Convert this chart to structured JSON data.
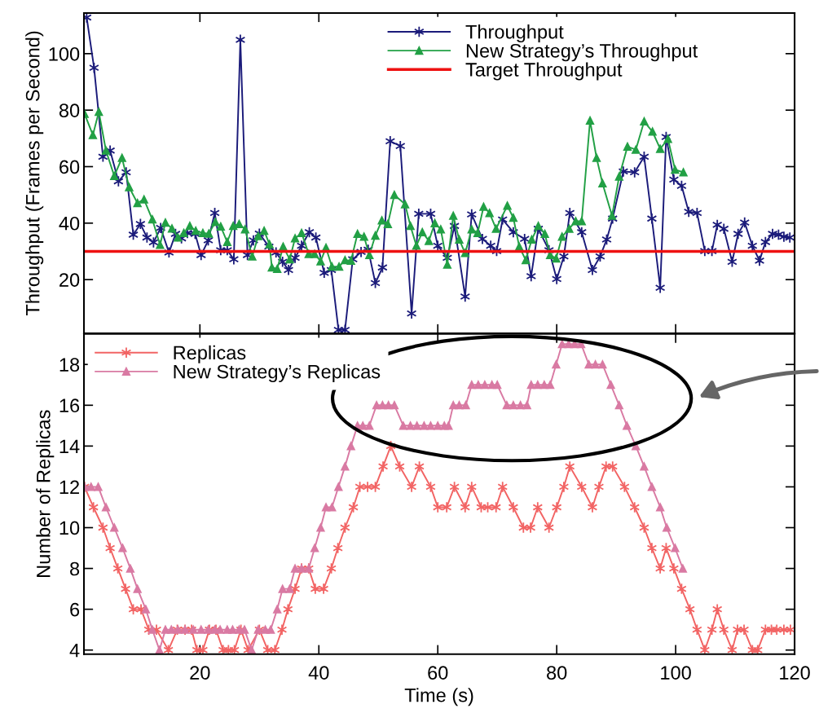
{
  "chart_data": [
    {
      "type": "line",
      "ylabel": "Throughput (Frames per Second)",
      "xlim": [
        0.5,
        120
      ],
      "xticks": [
        20,
        40,
        60,
        80,
        100,
        120
      ],
      "ylim": [
        1,
        114.4
      ],
      "yticks": [
        20,
        40,
        60,
        80,
        100
      ],
      "tick_labels": "y",
      "grid": false,
      "legend": "top right",
      "series": [
        {
          "name": "Throughput",
          "color": "#1b1b7a",
          "marker": "cross",
          "x": [
            0.96,
            2.2,
            3.7,
            4.9,
            6.3,
            7.6,
            8.8,
            10.0,
            11.1,
            12.2,
            13.4,
            14.8,
            15.9,
            16.9,
            17.9,
            19.2,
            20.2,
            21.4,
            22.5,
            23.5,
            24.6,
            25.7,
            26.8,
            28.0,
            29.0,
            30.0,
            31.6,
            32.8,
            33.9,
            34.9,
            36.0,
            37.1,
            38.4,
            39.5,
            40.9,
            42.1,
            43.3,
            44.4,
            45.7,
            47.1,
            48.3,
            49.5,
            50.7,
            52.0,
            53.7,
            55.6,
            56.8,
            58.8,
            60.0,
            61.6,
            62.8,
            64.6,
            65.7,
            67.5,
            68.9,
            69.9,
            70.9,
            72.7,
            74.6,
            75.7,
            76.9,
            78.7,
            80.0,
            81.2,
            82.2,
            84.2,
            86.0,
            87.3,
            88.4,
            89.4,
            91.2,
            93.1,
            94.7,
            96.0,
            97.4,
            98.4,
            99.7,
            101.0,
            102.2,
            103.6,
            104.9,
            106.1,
            107.0,
            108.1,
            109.5,
            110.5,
            111.6,
            112.9,
            114.1,
            115.1,
            116.3,
            117.3,
            118.2,
            119.2
          ],
          "values": [
            112.8,
            95,
            63.5,
            65.7,
            54.8,
            58,
            35.9,
            39.7,
            34.9,
            33.2,
            38.3,
            29.6,
            36.2,
            34.6,
            36.5,
            36.2,
            28.7,
            33.9,
            43.6,
            30.4,
            30.4,
            27.2,
            104.9,
            28.7,
            33.9,
            36.3,
            31.7,
            29.6,
            26.3,
            23.4,
            27.7,
            32,
            36.8,
            34.9,
            22.4,
            23.4,
            2.2,
            2.2,
            27.2,
            29.8,
            30.6,
            18.8,
            24.3,
            69,
            67.3,
            8,
            43.3,
            43.3,
            32,
            27.7,
            39,
            14,
            43.1,
            34.4,
            32,
            30.1,
            41.3,
            36.8,
            34.4,
            21.2,
            38,
            30.4,
            20.2,
            28.2,
            43.6,
            36.8,
            23.4,
            28.2,
            34.2,
            41.6,
            58.3,
            58,
            63.5,
            41.6,
            17.1,
            70.5,
            55.4,
            53.2,
            44,
            43.6,
            30.1,
            30.1,
            39.4,
            38,
            26.3,
            36.2,
            40.2,
            32,
            26.7,
            33.3,
            36.2,
            35.9,
            35.2,
            34.9
          ]
        },
        {
          "name": "New Strategy’s Throughput",
          "color": "#22a045",
          "marker": "triangle",
          "x": [
            0.6,
            2.0,
            3.0,
            4.2,
            5.6,
            6.9,
            8.1,
            9.5,
            10.6,
            12.0,
            13.3,
            14.2,
            15.3,
            16.3,
            17.3,
            18.3,
            19.3,
            20.5,
            21.5,
            22.6,
            23.5,
            24.6,
            25.6,
            26.6,
            27.6,
            28.8,
            29.8,
            30.8,
            31.7,
            32.1,
            33.0,
            34.0,
            35.1,
            36.0,
            37.1,
            38.3,
            39.3,
            40.3,
            41.2,
            42.2,
            43.4,
            44.4,
            45.4,
            46.5,
            47.6,
            48.5,
            49.5,
            50.6,
            51.6,
            52.7,
            54.5,
            55.4,
            56.4,
            57.4,
            58.5,
            59.5,
            60.5,
            61.6,
            62.6,
            63.6,
            64.6,
            65.7,
            66.7,
            67.7,
            68.7,
            69.8,
            71.7,
            72.7,
            73.7,
            74.8,
            75.8,
            76.9,
            78.0,
            78.9,
            79.9,
            80.9,
            82.1,
            83.2,
            84.2,
            85.6,
            86.7,
            87.7,
            89.3,
            90.5,
            91.9,
            93.3,
            94.7,
            96.1,
            97.4,
            98.7,
            99.9,
            101.3
          ],
          "values": [
            78.7,
            71.2,
            79.4,
            65.7,
            56.7,
            63.1,
            52.7,
            47.1,
            48.4,
            41.3,
            32.3,
            40.2,
            38.1,
            34.9,
            36.5,
            39,
            37.3,
            36.5,
            36.3,
            40.4,
            38.8,
            33.3,
            39,
            39.7,
            37.8,
            28.2,
            35.4,
            37.3,
            32.5,
            24.3,
            23.8,
            31.7,
            27.2,
            34.6,
            36.5,
            29.1,
            29.1,
            26.5,
            31.3,
            24.6,
            24.6,
            26.9,
            26.7,
            36.2,
            35.2,
            28.7,
            35.6,
            41,
            39.7,
            50,
            46.7,
            39,
            32,
            36.8,
            33.7,
            40,
            37.8,
            25.3,
            42.6,
            34.2,
            29.4,
            37.8,
            36.5,
            45.8,
            43.6,
            38,
            46.2,
            41.9,
            31.7,
            26.9,
            34.2,
            39,
            36.2,
            28.7,
            27.5,
            35.2,
            38,
            40.7,
            40.7,
            76.3,
            63.1,
            54.1,
            42.6,
            56.5,
            67.1,
            66,
            76,
            72.4,
            66.3,
            69.8,
            58.9,
            58
          ]
        }
      ],
      "ref_lines": [
        {
          "axis": "y",
          "value": 30,
          "label": "Target Throughput",
          "color": "#ee1111",
          "line_style": "solid"
        }
      ]
    },
    {
      "type": "line",
      "xlabel": "Time (s)",
      "ylabel": "Number of Replicas",
      "xlim": [
        0.5,
        120
      ],
      "xticks": [
        20,
        40,
        60,
        80,
        100,
        120
      ],
      "ylim": [
        3.8,
        19.5
      ],
      "yticks": [
        4,
        6,
        8,
        10,
        12,
        14,
        16,
        18
      ],
      "grid": false,
      "legend": "top left",
      "series": [
        {
          "name": "Replicas",
          "color": "#f26464",
          "marker": "cross",
          "x": [
            0.6,
            2.1,
            3.7,
            4.9,
            6.2,
            7.5,
            8.8,
            10.1,
            11.4,
            12.7,
            14.7,
            16.2,
            17.5,
            18.6,
            19.5,
            20.5,
            21.6,
            22.7,
            23.9,
            24.8,
            25.8,
            26.9,
            28.1,
            30.0,
            31.4,
            32.6,
            33.8,
            34.8,
            36.0,
            37.1,
            38.3,
            39.4,
            40.8,
            42.1,
            43.2,
            44.4,
            45.8,
            46.9,
            48.2,
            49.5,
            50.8,
            52.1,
            53.6,
            55.6,
            56.9,
            58.8,
            60.0,
            61.5,
            62.8,
            64.6,
            65.7,
            67.3,
            68.4,
            69.8,
            70.9,
            72.7,
            74.4,
            75.6,
            76.8,
            78.7,
            80.0,
            81.2,
            82.2,
            84.2,
            86.0,
            87.1,
            88.3,
            89.4,
            91.4,
            93.1,
            94.7,
            96.0,
            97.4,
            98.4,
            99.7,
            101.0,
            102.4,
            103.6,
            104.9,
            106.1,
            107.0,
            108.1,
            109.5,
            110.4,
            111.5,
            112.9,
            113.8,
            115.1,
            116.1,
            117.0,
            118.2,
            119.3
          ],
          "values": [
            12,
            11,
            10,
            9,
            8,
            7,
            6,
            6,
            5,
            5,
            4,
            5,
            5,
            5,
            4,
            4,
            5,
            5,
            4,
            4,
            4,
            5,
            4,
            5,
            4,
            4,
            5,
            6,
            7,
            8,
            8,
            7,
            7,
            8,
            9,
            10,
            11,
            12,
            12,
            12,
            13,
            14,
            13,
            12,
            13,
            12,
            11,
            11,
            12,
            11,
            12,
            11,
            11,
            11,
            12,
            11,
            10,
            10,
            11,
            10,
            11,
            12,
            13,
            12,
            11,
            12,
            13,
            13,
            12,
            11,
            10,
            9,
            8,
            9,
            8,
            7,
            6,
            5,
            4,
            5,
            6,
            5,
            4,
            5,
            5,
            4,
            4,
            5,
            5,
            5,
            5,
            5
          ]
        },
        {
          "name": "New Strategy’s Replicas",
          "color": "#d97aa3",
          "marker": "triangle",
          "x": [
            0.6,
            1.7,
            2.9,
            4.2,
            5.6,
            7.0,
            8.3,
            9.5,
            10.9,
            12.0,
            13.2,
            14.2,
            15.2,
            16.3,
            17.5,
            18.9,
            20.2,
            21.4,
            22.5,
            23.4,
            24.6,
            25.5,
            26.6,
            27.5,
            28.7,
            29.8,
            31.0,
            31.9,
            33.0,
            33.9,
            35.1,
            36.0,
            37.1,
            38.3,
            39.3,
            40.3,
            41.2,
            42.2,
            43.3,
            44.4,
            45.4,
            46.5,
            47.4,
            48.5,
            49.7,
            50.7,
            51.7,
            52.7,
            54.2,
            55.4,
            56.5,
            57.7,
            58.8,
            60.0,
            61.1,
            61.8,
            62.6,
            63.6,
            64.7,
            65.7,
            66.8,
            67.9,
            69.1,
            70.0,
            71.6,
            72.7,
            73.9,
            75.0,
            75.7,
            76.8,
            77.9,
            78.9,
            79.9,
            80.9,
            82.0,
            83.0,
            84.1,
            85.4,
            86.5,
            87.7,
            89.1,
            90.5,
            91.8,
            93.3,
            94.7,
            96.0,
            97.4,
            98.5,
            99.9,
            101.2
          ],
          "values": [
            12,
            12,
            12,
            11,
            10,
            9,
            8,
            7,
            6,
            5,
            4,
            5,
            5,
            5,
            5,
            5,
            5,
            5,
            5,
            5,
            5,
            5,
            5,
            5,
            4,
            5,
            5,
            5,
            6,
            7,
            7,
            8,
            8,
            8,
            9,
            10,
            11,
            11,
            12,
            13,
            14,
            15,
            15,
            15,
            16,
            16,
            16,
            16,
            15,
            15,
            15,
            15,
            15,
            15,
            15,
            15,
            16,
            16,
            16,
            17,
            17,
            17,
            17,
            17,
            16,
            16,
            16,
            16,
            17,
            17,
            17,
            17,
            18,
            19,
            19,
            19,
            19,
            18,
            18,
            18,
            17,
            16,
            15,
            14,
            13,
            12,
            11,
            10,
            9,
            8
          ]
        }
      ]
    }
  ]
}
